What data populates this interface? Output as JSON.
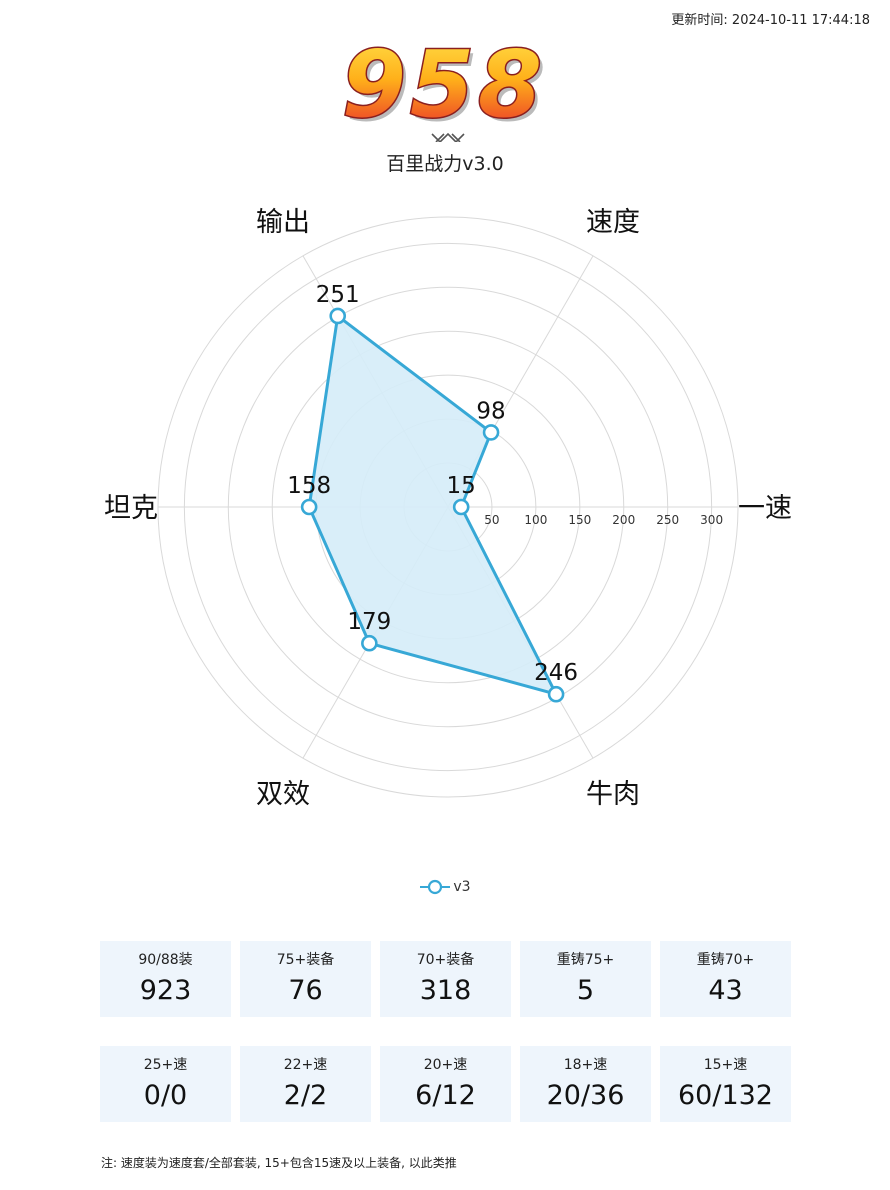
{
  "header": {
    "update_time": "更新时间: 2024-10-11 17:44:18",
    "score": "958",
    "subtitle": "百里战力v3.0"
  },
  "colors": {
    "series_line": "#37a8d6",
    "series_fill": "#d5ecf8",
    "grid": "#d9d9d9",
    "card_bg": "#eef5fc",
    "score_gradient_top": "#ffd21a",
    "score_gradient_bottom": "#e8272a",
    "score_outline": "#8a1f1f"
  },
  "chart_data": {
    "type": "radar",
    "axes": [
      "一速",
      "速度",
      "输出",
      "坦克",
      "双效",
      "牛肉"
    ],
    "radial_ticks": [
      50,
      100,
      150,
      200,
      250,
      300
    ],
    "rlim": [
      0,
      330
    ],
    "grid": true,
    "series": [
      {
        "name": "v3",
        "values": [
          15,
          98,
          251,
          158,
          179,
          246
        ]
      }
    ],
    "legend": "bottom-center"
  },
  "legend": {
    "label": "v3"
  },
  "stats_row1": [
    {
      "label": "90/88装",
      "value": "923"
    },
    {
      "label": "75+装备",
      "value": "76"
    },
    {
      "label": "70+装备",
      "value": "318"
    },
    {
      "label": "重铸75+",
      "value": "5"
    },
    {
      "label": "重铸70+",
      "value": "43"
    }
  ],
  "stats_row2": [
    {
      "label": "25+速",
      "value": "0/0"
    },
    {
      "label": "22+速",
      "value": "2/2"
    },
    {
      "label": "20+速",
      "value": "6/12"
    },
    {
      "label": "18+速",
      "value": "20/36"
    },
    {
      "label": "15+速",
      "value": "60/132"
    }
  ],
  "note": "注: 速度装为速度套/全部套装, 15+包含15速及以上装备, 以此类推"
}
